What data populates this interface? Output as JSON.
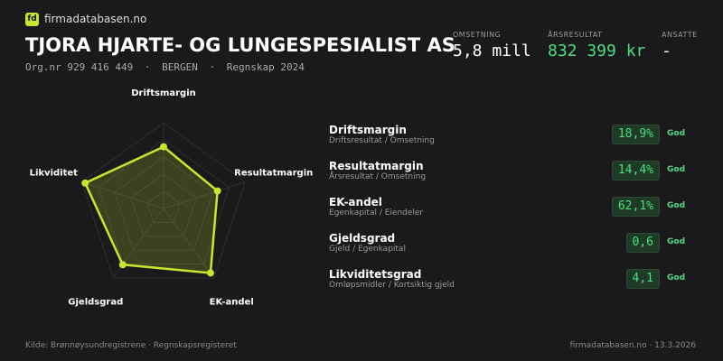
{
  "header": {
    "brand": "firmadatabasen.no",
    "title": "TJORA HJARTE- OG LUNGESPESIALIST AS",
    "orgnr": "Org.nr 929 416 449",
    "city": "BERGEN",
    "period": "Regnskap 2024",
    "separator": "·"
  },
  "stats": [
    {
      "label": "OMSETNING",
      "value": "5,8 mill"
    },
    {
      "label": "ÅRSRESULTAT",
      "value": "832 399 kr"
    },
    {
      "label": "ANSATTE",
      "value": "-"
    }
  ],
  "metrics": [
    {
      "name": "Driftsmargin",
      "formula": "Driftsresultat / Omsetning",
      "value": "18,9%",
      "rating": "God"
    },
    {
      "name": "Resultatmargin",
      "formula": "Årsresultat / Omsetning",
      "value": "14,4%",
      "rating": "God"
    },
    {
      "name": "EK-andel",
      "formula": "Egenkapital / Eiendeler",
      "value": "62,1%",
      "rating": "God"
    },
    {
      "name": "Gjeldsgrad",
      "formula": "Gjeld / Egenkapital",
      "value": "0,6",
      "rating": "God"
    },
    {
      "name": "Likviditetsgrad",
      "formula": "Omløpsmidler / Kortsiktig gjeld",
      "value": "4,1",
      "rating": "God"
    }
  ],
  "chart_data": {
    "type": "radar",
    "categories": [
      "Driftsmargin",
      "Resultatmargin",
      "EK-andel",
      "Gjeldsgrad",
      "Likviditet"
    ],
    "values": [
      0.72,
      0.66,
      0.93,
      0.81,
      0.96
    ],
    "rlim": [
      0,
      1
    ],
    "rticks": [
      0.2,
      0.4,
      0.6,
      0.8,
      1
    ],
    "color": "#c8e62b"
  },
  "footer": {
    "source": "Kilde: Brønnøysundregistrene · Regnskapsregisteret",
    "site": "firmadatabasen.no · 13.3.2026"
  }
}
